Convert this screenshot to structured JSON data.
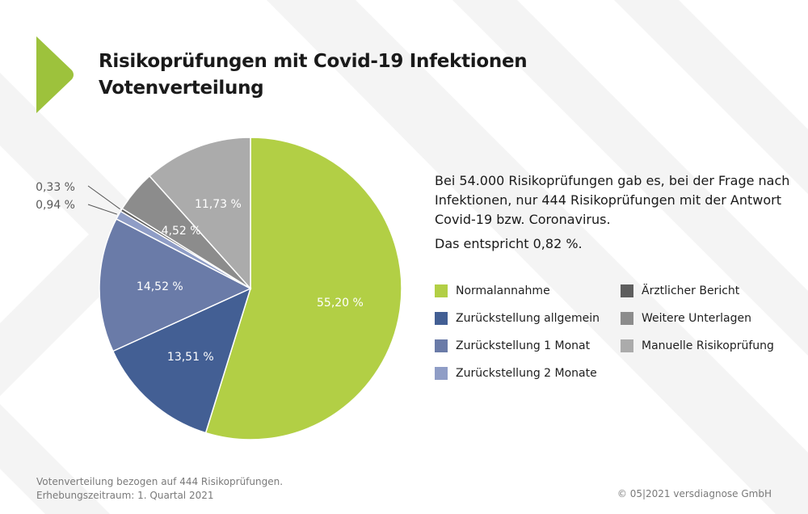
{
  "header": {
    "title_line1": "Risikoprüfungen mit Covid-19 Infektionen",
    "title_line2": "Votenverteilung",
    "accent_color": "#9dc23c"
  },
  "description": {
    "paragraph1": "Bei 54.000 Risikoprüfungen gab es, bei der Frage nach Infektionen, nur 444 Risikoprüfungen mit der Antwort Covid-19 bzw. Coronavirus.",
    "paragraph2": "Das entspricht 0,82 %."
  },
  "footer": {
    "note_line1": "Votenverteilung bezogen auf 444 Risikoprüfungen.",
    "note_line2": "Erhebungszeitraum: 1. Quartal 2021",
    "copyright": "© 05|2021 versdiagnose GmbH"
  },
  "chart_data": {
    "type": "pie",
    "title": "Risikoprüfungen mit Covid-19 Infektionen – Votenverteilung",
    "start": "top",
    "direction": "clockwise",
    "legend_placement": "right",
    "unit": "%",
    "slices": [
      {
        "name": "Normalannahme",
        "value": 55.2,
        "label": "55,20 %",
        "color": "#b2cf45",
        "label_inside": true
      },
      {
        "name": "Zurückstellung allgemein",
        "value": 13.51,
        "label": "13,51 %",
        "color": "#435f94",
        "label_inside": true
      },
      {
        "name": "Zurückstellung 1 Monat",
        "value": 14.52,
        "label": "14,52 %",
        "color": "#6a7ba8",
        "label_inside": true
      },
      {
        "name": "Zurückstellung 2 Monate",
        "value": 0.94,
        "label": "0,94 %",
        "color": "#8f9dc6",
        "label_inside": false
      },
      {
        "name": "Ärztlicher Bericht",
        "value": 0.33,
        "label": "0,33 %",
        "color": "#5e5e5e",
        "label_inside": false
      },
      {
        "name": "Weitere Unterlagen",
        "value": 4.52,
        "label": "4,52 %",
        "color": "#8c8c8c",
        "label_inside": true
      },
      {
        "name": "Manuelle Risikoprüfung",
        "value": 11.73,
        "label": "11,73 %",
        "color": "#ababab",
        "label_inside": true
      }
    ],
    "legend": [
      {
        "label": "Normalannahme",
        "color": "#b2cf45"
      },
      {
        "label": "Zurückstellung allgemein",
        "color": "#435f94"
      },
      {
        "label": "Zurückstellung 1 Monat",
        "color": "#6a7ba8"
      },
      {
        "label": "Zurückstellung 2 Monate",
        "color": "#8f9dc6"
      },
      {
        "label": "Ärztlicher Bericht",
        "color": "#5e5e5e"
      },
      {
        "label": "Weitere Unterlagen",
        "color": "#8c8c8c"
      },
      {
        "label": "Manuelle Risikoprüfung",
        "color": "#ababab"
      }
    ]
  }
}
